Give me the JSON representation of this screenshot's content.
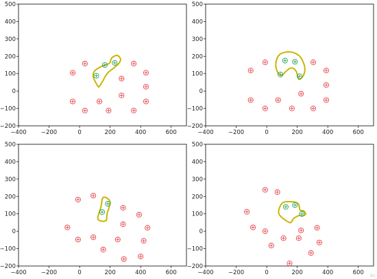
{
  "watermark": "Ac",
  "chart_data": [
    {
      "type": "scatter",
      "xlim": [
        -400,
        700
      ],
      "ylim": [
        -200,
        500
      ],
      "xticks": [
        -400,
        -200,
        0,
        200,
        400,
        600
      ],
      "yticks": [
        -200,
        -100,
        0,
        100,
        200,
        300,
        400,
        500
      ],
      "grid": false,
      "series": [
        {
          "marker": "circle-plus",
          "color": "#e8474a",
          "points": [
            [
              -45,
              105
            ],
            [
              35,
              158
            ],
            [
              355,
              158
            ],
            [
              435,
              105
            ],
            [
              -45,
              -60
            ],
            [
              35,
              -112
            ],
            [
              130,
              -60
            ],
            [
              190,
              -112
            ],
            [
              275,
              72
            ],
            [
              275,
              -25
            ],
            [
              355,
              -112
            ],
            [
              435,
              25
            ],
            [
              435,
              -60
            ]
          ]
        },
        {
          "marker": "circle-plus",
          "color": "#2ca25f",
          "points": [
            [
              110,
              88
            ],
            [
              165,
              150
            ],
            [
              230,
              162
            ]
          ]
        }
      ],
      "boundary": {
        "color": "#c9b400",
        "points": [
          [
            120,
            28
          ],
          [
            90,
            80
          ],
          [
            98,
            115
          ],
          [
            140,
            140
          ],
          [
            195,
            160
          ],
          [
            210,
            190
          ],
          [
            245,
            205
          ],
          [
            268,
            185
          ],
          [
            258,
            160
          ],
          [
            220,
            130
          ],
          [
            180,
            100
          ],
          [
            150,
            55
          ],
          [
            130,
            28
          ]
        ]
      }
    },
    {
      "type": "scatter",
      "xlim": [
        -400,
        700
      ],
      "ylim": [
        -200,
        500
      ],
      "xticks": [
        -400,
        -200,
        0,
        200,
        400,
        600
      ],
      "yticks": [
        -200,
        -100,
        0,
        100,
        200,
        300,
        400,
        500
      ],
      "grid": false,
      "series": [
        {
          "marker": "circle-plus",
          "color": "#e8474a",
          "points": [
            [
              -105,
              118
            ],
            [
              -10,
              165
            ],
            [
              305,
              165
            ],
            [
              390,
              118
            ],
            [
              -105,
              -52
            ],
            [
              -10,
              -100
            ],
            [
              75,
              -52
            ],
            [
              165,
              -100
            ],
            [
              225,
              -15
            ],
            [
              305,
              -100
            ],
            [
              390,
              35
            ],
            [
              390,
              -52
            ]
          ]
        },
        {
          "marker": "circle-plus",
          "color": "#2ca25f",
          "points": [
            [
              90,
              95
            ],
            [
              120,
              175
            ],
            [
              185,
              168
            ],
            [
              215,
              85
            ]
          ]
        }
      ],
      "boundary": {
        "color": "#c9b400",
        "points": [
          [
            70,
            110
          ],
          [
            60,
            160
          ],
          [
            85,
            210
          ],
          [
            150,
            225
          ],
          [
            210,
            205
          ],
          [
            240,
            165
          ],
          [
            250,
            120
          ],
          [
            235,
            82
          ],
          [
            210,
            68
          ],
          [
            195,
            110
          ],
          [
            175,
            130
          ],
          [
            150,
            130
          ],
          [
            120,
            108
          ],
          [
            95,
            90
          ]
        ]
      }
    },
    {
      "type": "scatter",
      "xlim": [
        -400,
        700
      ],
      "ylim": [
        -200,
        500
      ],
      "xticks": [
        -400,
        -200,
        0,
        200,
        400,
        600
      ],
      "yticks": [
        -200,
        -100,
        0,
        100,
        200,
        300,
        400,
        500
      ],
      "grid": false,
      "series": [
        {
          "marker": "circle-plus",
          "color": "#e8474a",
          "points": [
            [
              -80,
              22
            ],
            [
              -10,
              182
            ],
            [
              -10,
              -48
            ],
            [
              90,
              205
            ],
            [
              90,
              -35
            ],
            [
              155,
              -105
            ],
            [
              250,
              -48
            ],
            [
              285,
              135
            ],
            [
              285,
              40
            ],
            [
              290,
              -160
            ],
            [
              390,
              95
            ],
            [
              400,
              -145
            ],
            [
              420,
              -55
            ],
            [
              445,
              20
            ]
          ]
        },
        {
          "marker": "circle-plus",
          "color": "#2ca25f",
          "points": [
            [
              148,
              110
            ],
            [
              185,
              158
            ]
          ]
        }
      ],
      "boundary": {
        "color": "#c9b400",
        "points": [
          [
            120,
            70
          ],
          [
            140,
            140
          ],
          [
            155,
            195
          ],
          [
            200,
            170
          ],
          [
            180,
            100
          ],
          [
            172,
            60
          ]
        ]
      }
    },
    {
      "type": "scatter",
      "xlim": [
        -400,
        700
      ],
      "ylim": [
        -200,
        500
      ],
      "xticks": [
        -400,
        -200,
        0,
        200,
        400,
        600
      ],
      "yticks": [
        -200,
        -100,
        0,
        100,
        200,
        300,
        400,
        500
      ],
      "grid": false,
      "series": [
        {
          "marker": "circle-plus",
          "color": "#e8474a",
          "points": [
            [
              -130,
              112
            ],
            [
              -90,
              22
            ],
            [
              -10,
              238
            ],
            [
              -10,
              0
            ],
            [
              30,
              -82
            ],
            [
              70,
              225
            ],
            [
              110,
              -40
            ],
            [
              150,
              -185
            ],
            [
              210,
              -40
            ],
            [
              225,
              5
            ],
            [
              290,
              -125
            ],
            [
              330,
              20
            ],
            [
              345,
              -65
            ]
          ]
        },
        {
          "marker": "circle-plus",
          "color": "#2ca25f",
          "points": [
            [
              125,
              140
            ],
            [
              185,
              150
            ],
            [
              230,
              100
            ]
          ]
        }
      ],
      "boundary": {
        "color": "#c9b400",
        "points": [
          [
            80,
            100
          ],
          [
            100,
            160
          ],
          [
            150,
            170
          ],
          [
            205,
            160
          ],
          [
            218,
            122
          ],
          [
            240,
            118
          ],
          [
            255,
            100
          ],
          [
            235,
            88
          ],
          [
            210,
            90
          ],
          [
            175,
            72
          ],
          [
            150,
            50
          ]
        ]
      }
    }
  ]
}
